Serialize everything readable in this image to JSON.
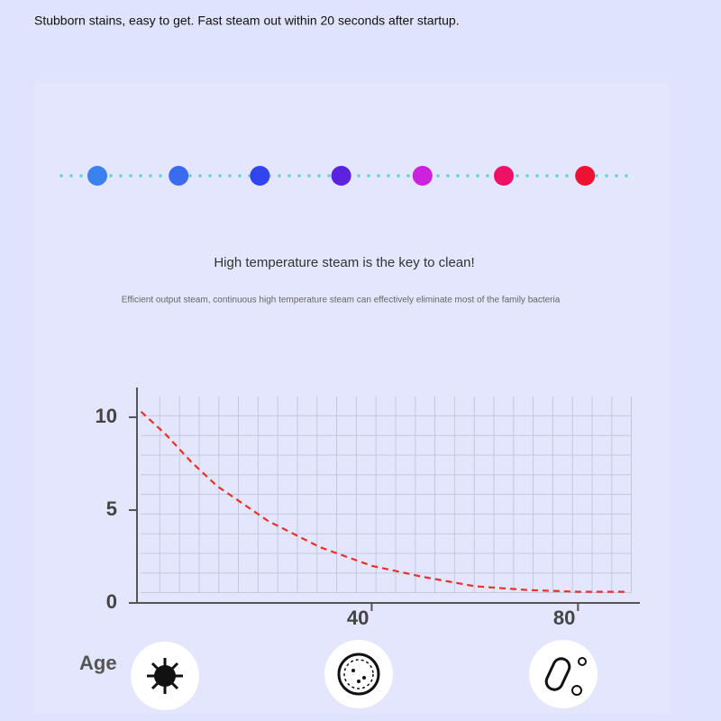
{
  "header": {
    "text": "Stubborn stains, easy to get. Fast steam out within 20 seconds after startup."
  },
  "headline": "High temperature steam is the key to clean!",
  "subtext": "Efficient output steam, continuous high temperature steam can effectively eliminate most of the family bacteria",
  "chart_data": {
    "type": "line",
    "x_label": "Age",
    "x": [
      -4.7,
      0,
      5,
      10,
      20,
      30,
      40,
      50,
      60,
      70,
      80,
      89.6
    ],
    "series": [
      {
        "color": "#e8302a",
        "values": [
          10.3,
          9.1,
          7.6,
          6.3,
          4.4,
          3.0,
          2.0,
          1.4,
          0.9,
          0.7,
          0.6,
          0.6
        ]
      }
    ],
    "xlim": [
      -5.5,
      92
    ],
    "ylim": [
      0,
      11.6
    ],
    "xticks": [
      40,
      80
    ],
    "yticks": [
      0,
      5,
      10
    ],
    "grid": true
  }
}
